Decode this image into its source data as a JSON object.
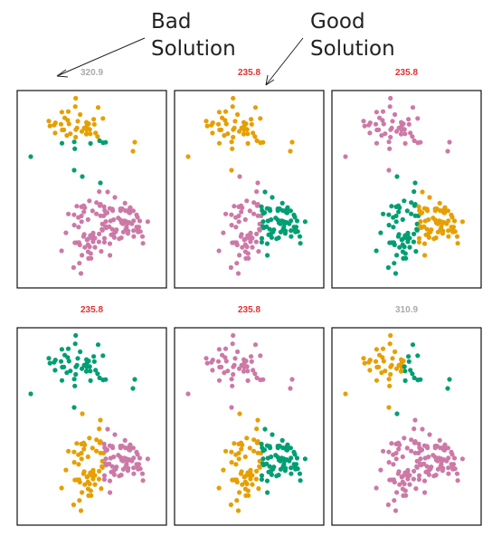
{
  "annotations": {
    "bad_line1": "Bad",
    "bad_line2": "Solution",
    "good_line1": "Good",
    "good_line2": "Solution"
  },
  "colors": {
    "orange": "#E69F00",
    "green": "#009E73",
    "pink": "#CC79A7",
    "best_score": "#E03030",
    "worse_score": "#AAAAAA"
  },
  "chart_data": {
    "type": "scatter",
    "clusters_k": 3,
    "panels": [
      {
        "score": "320.9",
        "best": false
      },
      {
        "score": "235.8",
        "best": true
      },
      {
        "score": "235.8",
        "best": true
      },
      {
        "score": "235.8",
        "best": true
      },
      {
        "score": "235.8",
        "best": true
      },
      {
        "score": "310.9",
        "best": false
      }
    ]
  }
}
